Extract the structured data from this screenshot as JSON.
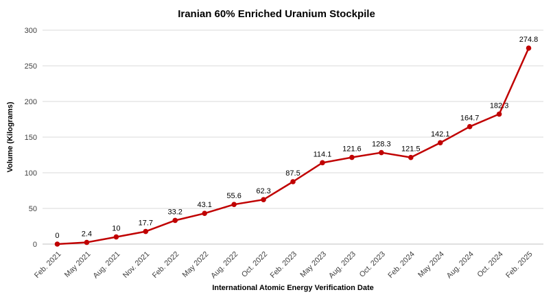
{
  "chart_data": {
    "type": "line",
    "title": "Iranian 60% Enriched Uranium Stockpile",
    "xlabel": "International Atomic Energy Verification Date",
    "ylabel": "Volume (Kilograms)",
    "categories": [
      "Feb. 2021",
      "May 2021",
      "Aug. 2021",
      "Nov. 2021",
      "Feb. 2022",
      "May 2022",
      "Aug. 2022",
      "Oct. 2022",
      "Feb. 2023",
      "May 2023",
      "Aug. 2023",
      "Oct. 2023",
      "Feb. 2024",
      "May 2024",
      "Aug. 2024",
      "Oct. 2024",
      "Feb. 2025"
    ],
    "values": [
      0,
      2.4,
      10,
      17.7,
      33.2,
      43.1,
      55.6,
      62.3,
      87.5,
      114.1,
      121.6,
      128.3,
      121.5,
      142.1,
      164.7,
      182.3,
      274.8
    ],
    "value_labels": [
      "0",
      "2.4",
      "10",
      "17.7",
      "33.2",
      "43.1",
      "55.6",
      "62.3",
      "87.5",
      "114.1",
      "121.6",
      "128.3",
      "121.5",
      "142.1",
      "164.7",
      "182.3",
      "274.8"
    ],
    "ylim": [
      0,
      300
    ],
    "ytick_step": 50,
    "grid": true,
    "legend": "none",
    "colors": {
      "line": "#C00000",
      "marker": "#C00000",
      "grid": "#D9D9D9",
      "axis_line": "#BFBFBF",
      "tick_label": "#404040",
      "data_label": "#000000",
      "title": "#000000"
    }
  }
}
